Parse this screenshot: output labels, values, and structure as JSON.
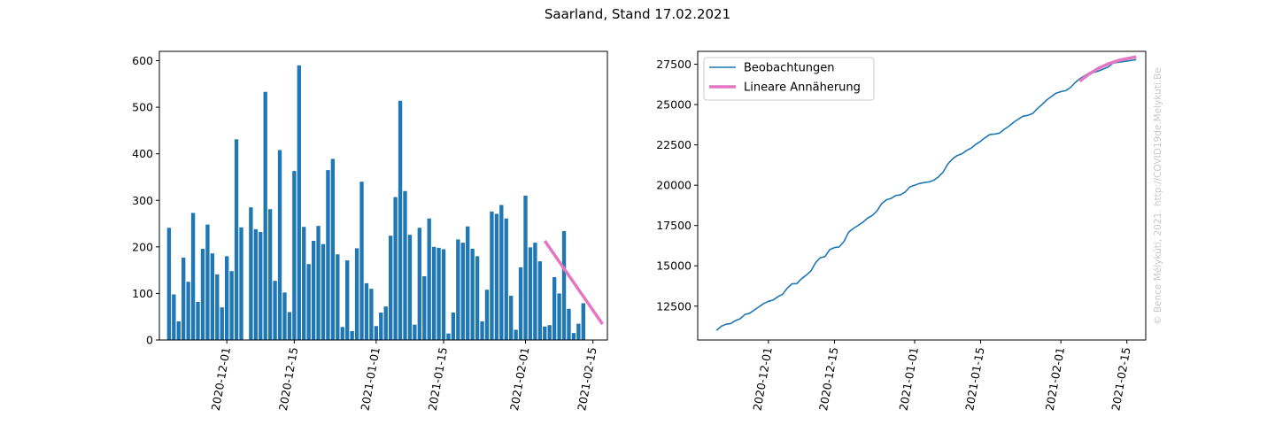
{
  "suptitle": "Saarland, Stand 17.02.2021",
  "credit": "© Bence Mélykúti, 2021. http://COVID19de.Melykuti.Be",
  "colors": {
    "bar": "#1f77b4",
    "line": "#1f77b4",
    "fit": "#e377c2"
  },
  "chart_data": [
    {
      "type": "bar",
      "title": "",
      "xlabel": "",
      "ylabel": "",
      "x_start": "2020-11-19",
      "x_end": "2021-02-17",
      "xlim": [
        "2020-11-17",
        "2021-02-18"
      ],
      "ylim": [
        0,
        620
      ],
      "yticks": [
        0,
        100,
        200,
        300,
        400,
        500,
        600
      ],
      "xticks": [
        "2020-12-01",
        "2020-12-15",
        "2021-01-01",
        "2021-01-15",
        "2021-02-01",
        "2021-02-15"
      ],
      "values": [
        241,
        98,
        40,
        177,
        125,
        273,
        82,
        196,
        248,
        186,
        141,
        70,
        180,
        148,
        431,
        242,
        0,
        285,
        238,
        232,
        533,
        281,
        127,
        408,
        102,
        60,
        363,
        590,
        243,
        163,
        213,
        245,
        206,
        365,
        389,
        184,
        28,
        171,
        19,
        197,
        340,
        122,
        110,
        30,
        59,
        72,
        224,
        307,
        514,
        320,
        226,
        33,
        241,
        137,
        261,
        200,
        198,
        195,
        14,
        59,
        216,
        209,
        244,
        196,
        180,
        40,
        108,
        276,
        271,
        290,
        261,
        95,
        22,
        156,
        310,
        199,
        209,
        169,
        29,
        32,
        135,
        100,
        234,
        67,
        15,
        35,
        79
      ],
      "fit": {
        "name": "",
        "x": [
          "2021-02-05",
          "2021-02-17"
        ],
        "y": [
          213,
          34
        ]
      }
    },
    {
      "type": "line",
      "title": "",
      "xlabel": "",
      "ylabel": "",
      "xlim": [
        "2020-11-16",
        "2021-02-19"
      ],
      "ylim": [
        10400,
        28300
      ],
      "yticks": [
        12500,
        15000,
        17500,
        20000,
        22500,
        25000,
        27500
      ],
      "xticks": [
        "2020-12-01",
        "2020-12-15",
        "2021-01-01",
        "2021-01-15",
        "2021-02-01",
        "2021-02-15"
      ],
      "legend_position": "top-left",
      "series": [
        {
          "name": "Beobachtungen",
          "x": [
            "2020-11-20",
            "2020-11-21",
            "2020-11-22",
            "2020-11-23",
            "2020-11-24",
            "2020-11-25",
            "2020-11-26",
            "2020-11-27",
            "2020-11-28",
            "2020-11-29",
            "2020-11-30",
            "2020-12-01",
            "2020-12-02",
            "2020-12-03",
            "2020-12-04",
            "2020-12-05",
            "2020-12-06",
            "2020-12-07",
            "2020-12-08",
            "2020-12-09",
            "2020-12-10",
            "2020-12-11",
            "2020-12-12",
            "2020-12-13",
            "2020-12-14",
            "2020-12-15",
            "2020-12-16",
            "2020-12-17",
            "2020-12-18",
            "2020-12-19",
            "2020-12-20",
            "2020-12-21",
            "2020-12-22",
            "2020-12-23",
            "2020-12-24",
            "2020-12-25",
            "2020-12-26",
            "2020-12-27",
            "2020-12-28",
            "2020-12-29",
            "2020-12-30",
            "2020-12-31",
            "2021-01-01",
            "2021-01-02",
            "2021-01-03",
            "2021-01-04",
            "2021-01-05",
            "2021-01-06",
            "2021-01-07",
            "2021-01-08",
            "2021-01-09",
            "2021-01-10",
            "2021-01-11",
            "2021-01-12",
            "2021-01-13",
            "2021-01-14",
            "2021-01-15",
            "2021-01-16",
            "2021-01-17",
            "2021-01-18",
            "2021-01-19",
            "2021-01-20",
            "2021-01-21",
            "2021-01-22",
            "2021-01-23",
            "2021-01-24",
            "2021-01-25",
            "2021-01-26",
            "2021-01-27",
            "2021-01-28",
            "2021-01-29",
            "2021-01-30",
            "2021-01-31",
            "2021-02-01",
            "2021-02-02",
            "2021-02-03",
            "2021-02-04",
            "2021-02-05",
            "2021-02-06",
            "2021-02-07",
            "2021-02-08",
            "2021-02-09",
            "2021-02-10",
            "2021-02-11",
            "2021-02-12",
            "2021-02-13",
            "2021-02-14",
            "2021-02-15",
            "2021-02-16",
            "2021-02-17"
          ],
          "y": [
            11000,
            11250,
            11380,
            11420,
            11600,
            11720,
            11980,
            12060,
            12260,
            12460,
            12660,
            12800,
            12880,
            13080,
            13240,
            13620,
            13880,
            13900,
            14200,
            14420,
            14680,
            15200,
            15500,
            15580,
            16000,
            16130,
            16170,
            16500,
            17080,
            17320,
            17500,
            17700,
            17950,
            18120,
            18400,
            18850,
            19100,
            19180,
            19360,
            19400,
            19580,
            19900,
            20000,
            20100,
            20160,
            20200,
            20300,
            20500,
            20800,
            21300,
            21620,
            21840,
            21940,
            22150,
            22300,
            22540,
            22730,
            22960,
            23150,
            23170,
            23230,
            23460,
            23660,
            23900,
            24100,
            24280,
            24330,
            24440,
            24740,
            25000,
            25280,
            25500,
            25710,
            25800,
            25860,
            26050,
            26350,
            26600,
            26780,
            26960,
            27000,
            27080,
            27200,
            27320,
            27560,
            27620,
            27660,
            27700,
            27740,
            27790
          ]
        },
        {
          "name": "Lineare Annäherung",
          "x": [
            "2021-02-05",
            "2021-02-07",
            "2021-02-09",
            "2021-02-11",
            "2021-02-13",
            "2021-02-15",
            "2021-02-17"
          ],
          "y": [
            26450,
            26900,
            27250,
            27520,
            27720,
            27850,
            27960
          ]
        }
      ]
    }
  ]
}
